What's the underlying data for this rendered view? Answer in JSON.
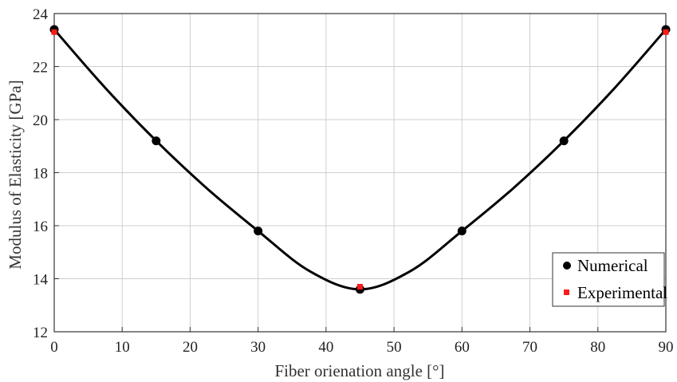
{
  "chart_data": {
    "type": "line",
    "xlabel": "Fiber orienation angle [°]",
    "ylabel": "Modulus of Elasticity [GPa]",
    "xlim": [
      0,
      90
    ],
    "ylim": [
      12,
      24
    ],
    "xticks": [
      0,
      10,
      20,
      30,
      40,
      50,
      60,
      70,
      80,
      90
    ],
    "yticks": [
      12,
      14,
      16,
      18,
      20,
      22,
      24
    ],
    "grid": true,
    "legend_position": "bottom-right",
    "series": [
      {
        "name": "Numerical",
        "marker": "circle",
        "color": "#000000",
        "x": [
          0,
          15,
          30,
          45,
          60,
          75,
          90
        ],
        "y": [
          23.4,
          19.2,
          15.8,
          13.6,
          15.8,
          19.2,
          23.4
        ]
      },
      {
        "name": "Experimental",
        "marker": "square",
        "color": "#ff1a1a",
        "x": [
          0,
          45,
          90
        ],
        "y": [
          23.3,
          13.7,
          23.3
        ]
      }
    ],
    "fit_curve": {
      "color": "#000000",
      "x": [
        0,
        7.5,
        15,
        22.5,
        30,
        37.5,
        45,
        52.5,
        60,
        67.5,
        75,
        82.5,
        90
      ],
      "y": [
        23.4,
        21.2,
        19.2,
        17.4,
        15.8,
        14.3,
        13.6,
        14.3,
        15.8,
        17.4,
        19.2,
        21.2,
        23.4
      ]
    }
  }
}
